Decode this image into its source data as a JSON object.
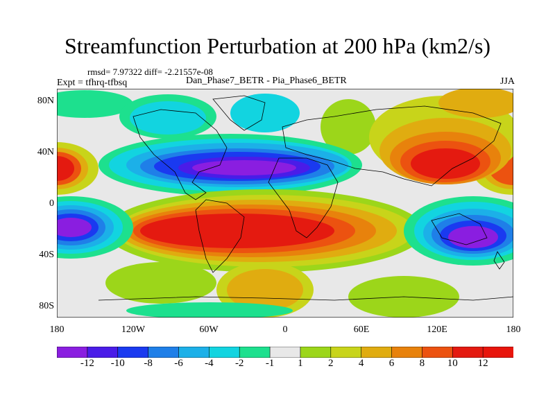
{
  "title": "Streamfunction Perturbation at 200 hPa (km2/s)",
  "stats_line": "rmsd= 7.97322 diff= -2.21557e-08",
  "expt_label": "Expt = tfhrq-tfbsq",
  "comparison_label": "Dan_Phase7_BETR - Pia_Phase6_BETR",
  "season": "JJA",
  "lat_labels": [
    "80N",
    "40N",
    "0",
    "40S",
    "80S"
  ],
  "lon_labels": [
    "180",
    "120W",
    "60W",
    "0",
    "60E",
    "120E",
    "180"
  ],
  "colorbar": {
    "labels": [
      "-12",
      "-10",
      "-8",
      "-6",
      "-4",
      "-2",
      "-1",
      "1",
      "2",
      "4",
      "6",
      "8",
      "10",
      "12"
    ],
    "colors": [
      "#8a1ee0",
      "#4a1ce8",
      "#1a3af0",
      "#1f7fe8",
      "#1cb0e8",
      "#12d4e0",
      "#1de08e",
      "#e8e8e8",
      "#9cd61a",
      "#c8d41a",
      "#e0ac10",
      "#e8820c",
      "#ec5210",
      "#e41a10",
      "#e8150c"
    ]
  }
}
